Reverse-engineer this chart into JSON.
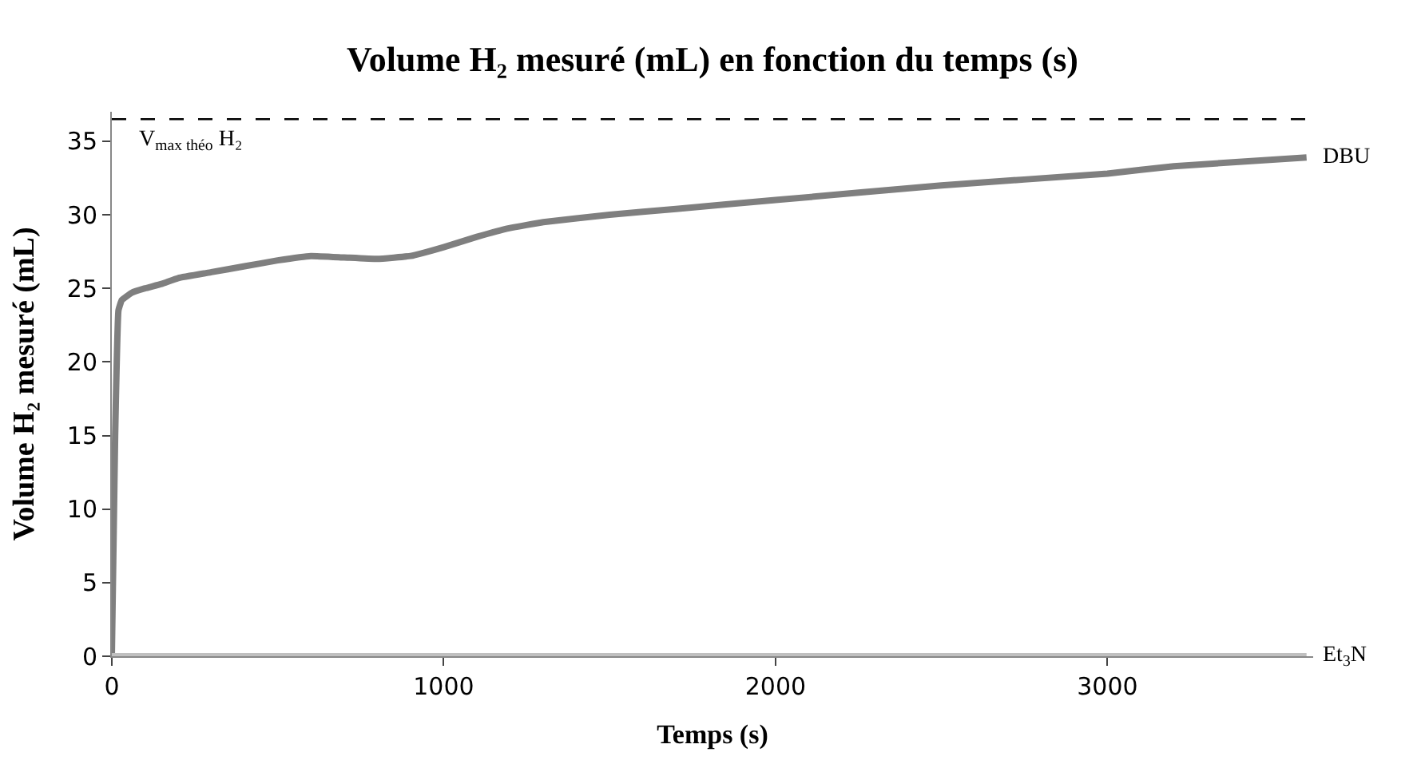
{
  "chart_data": {
    "type": "line",
    "title": "Volume H₂ mesuré (mL) en fonction du temps (s)",
    "xlabel": "Temps (s)",
    "ylabel": "Volume H₂ mesuré (mL)",
    "xlim": [
      0,
      3620
    ],
    "xticks": [
      0,
      1000,
      2000,
      3000
    ],
    "ylim": [
      0,
      37
    ],
    "yticks": [
      0,
      5,
      10,
      15,
      20,
      25,
      30,
      35
    ],
    "legend": false,
    "marker": "none",
    "line_style": "solid",
    "series": [
      {
        "name": "DBU",
        "color": "#7f7f7f",
        "x": [
          0,
          10,
          20,
          30,
          60,
          100,
          150,
          200,
          300,
          400,
          500,
          600,
          700,
          800,
          900,
          1000,
          1100,
          1200,
          1300,
          1500,
          1700,
          2000,
          2500,
          3000,
          3200,
          3600
        ],
        "values": [
          0,
          15,
          23.5,
          24.2,
          24.7,
          25,
          25.3,
          25.7,
          26.1,
          26.5,
          26.9,
          27.2,
          27.1,
          27.0,
          27.2,
          27.8,
          28.5,
          29.1,
          29.5,
          30,
          30.4,
          31,
          32,
          32.8,
          33.3,
          33.9
        ]
      },
      {
        "name": "Et$_{3}$N",
        "color": "#c0c0c0",
        "x": [
          0,
          3600
        ],
        "values": [
          0,
          0
        ]
      }
    ],
    "ref_lines": [
      {
        "axis": "y",
        "value": 36.5,
        "label": "V$_{max théo}$ H₂",
        "color": "#000000",
        "line_style": "dashed"
      }
    ]
  }
}
